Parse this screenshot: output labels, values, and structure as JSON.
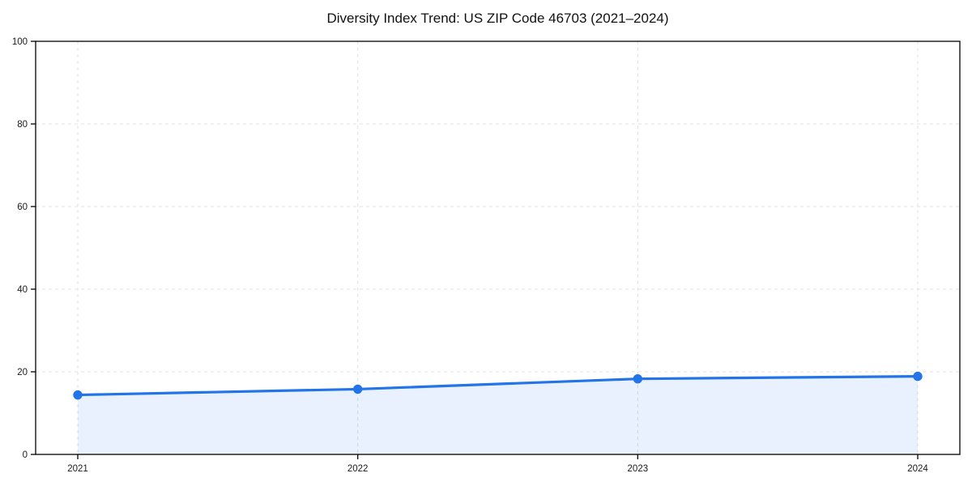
{
  "title": "Diversity Index Trend: US ZIP Code 46703 (2021–2024)",
  "colors": {
    "line": "#2274e8",
    "marker": "#2274e8",
    "area_fill": "#2274e8",
    "area_fill_opacity": 0.1,
    "grid": "#e0e0e0",
    "axis": "#000000",
    "tick_text": "#1a1a1a",
    "title_text": "#111111",
    "background": "#ffffff"
  },
  "chart_data": {
    "type": "line",
    "title": "Diversity Index Trend: US ZIP Code 46703 (2021–2024)",
    "x": [
      2021,
      2022,
      2023,
      2024
    ],
    "xticklabels": [
      "2021",
      "2022",
      "2023",
      "2024"
    ],
    "series": [
      {
        "name": "Diversity Index",
        "values": [
          14.4,
          15.8,
          18.3,
          18.9
        ]
      }
    ],
    "xlabel": "",
    "ylabel": "",
    "ylim": [
      0,
      100
    ],
    "yticks": [
      0,
      20,
      40,
      60,
      80,
      100
    ],
    "grid": true,
    "grid_style": "dashed",
    "legend_position": "none",
    "area_fill": true,
    "markers": true,
    "plot_border": "full-box"
  }
}
